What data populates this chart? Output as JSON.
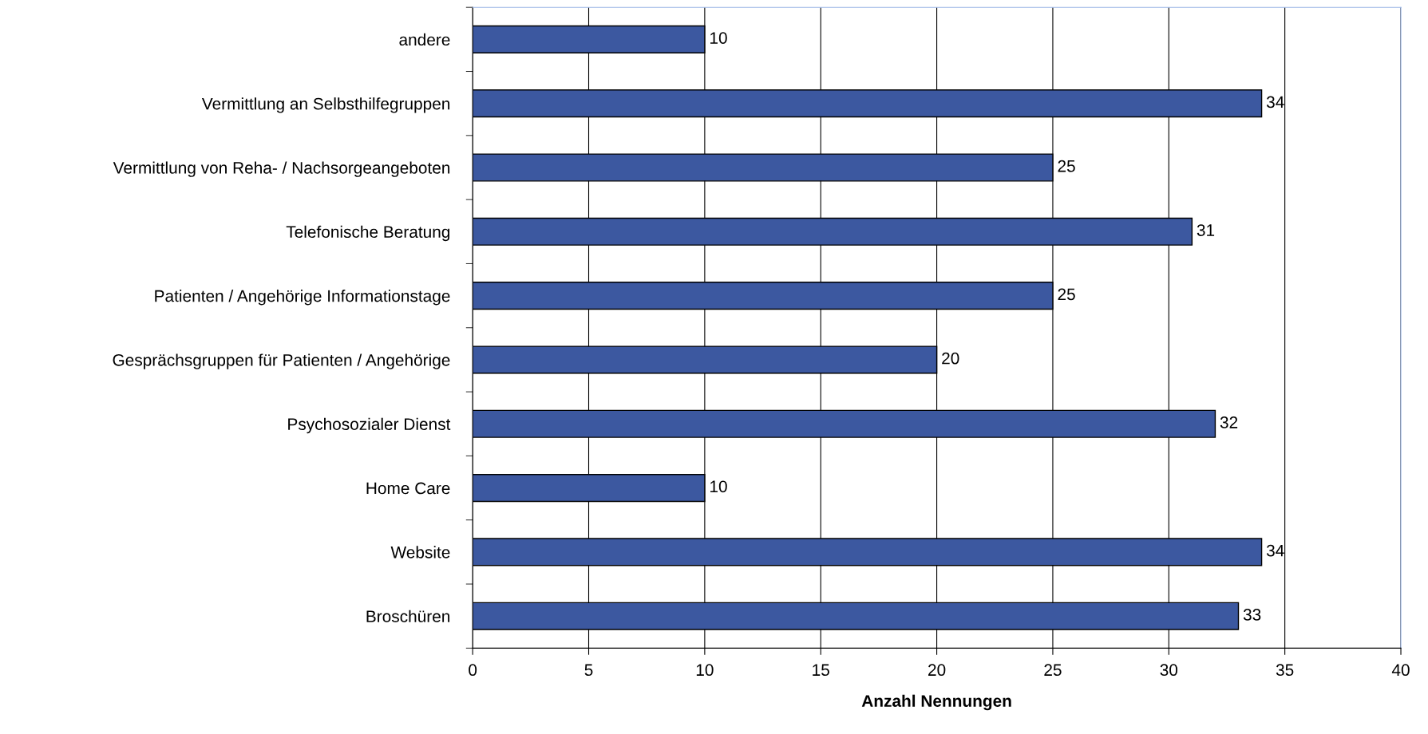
{
  "chart_data": {
    "type": "bar",
    "orientation": "horizontal",
    "xlabel": "Anzahl Nennungen",
    "categories": [
      "andere",
      "Vermittlung an Selbsthilfegruppen",
      "Vermittlung von Reha- / Nachsorgeangeboten",
      "Telefonische Beratung",
      "Patienten / Angehörige Informationstage",
      "Gesprächsgruppen für Patienten / Angehörige",
      "Psychosozialer Dienst",
      "Home Care",
      "Website",
      "Broschüren"
    ],
    "values": [
      10,
      34,
      25,
      31,
      25,
      20,
      32,
      10,
      34,
      33
    ],
    "color": "#3c58a0",
    "xlim": [
      0,
      40
    ],
    "xticks": [
      0,
      5,
      10,
      15,
      20,
      25,
      30,
      35,
      40
    ],
    "grid": "x",
    "data_labels": true,
    "legend": false
  }
}
